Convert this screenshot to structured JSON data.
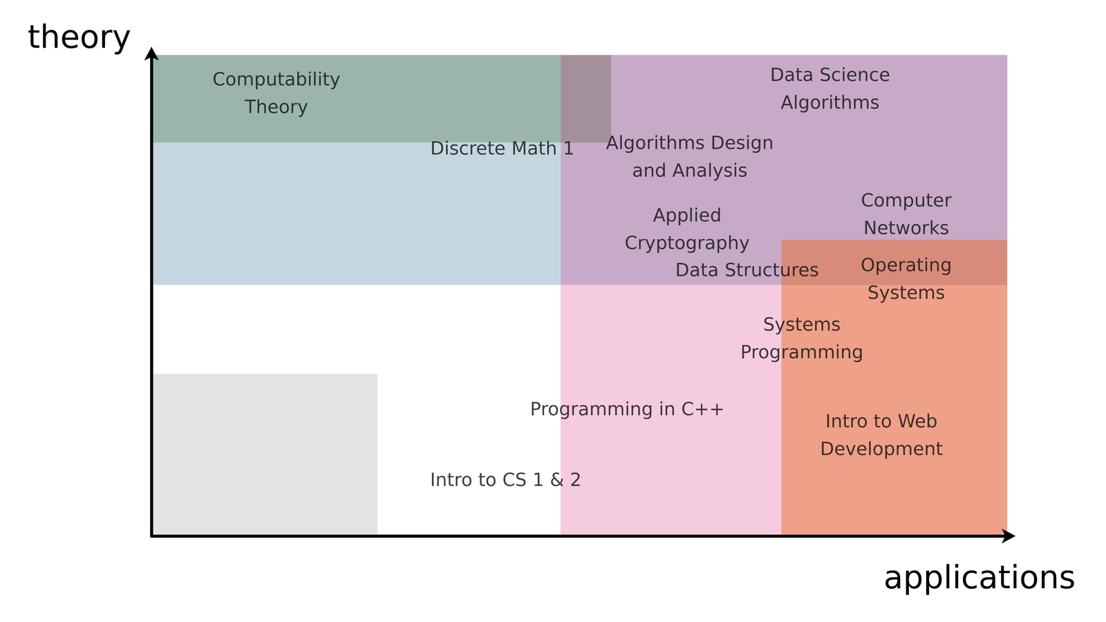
{
  "chart_data": {
    "type": "scatter",
    "x_label": "applications",
    "y_label": "theory",
    "xlim": [
      0,
      100
    ],
    "ylim": [
      0,
      100
    ],
    "tick_labels": false,
    "grid": false,
    "regions": [
      {
        "x": [
          47.8,
          100
        ],
        "y": [
          52.2,
          100
        ],
        "color": "#c6aac8"
      },
      {
        "x": [
          0,
          47.8
        ],
        "y": [
          81.8,
          100
        ],
        "color": "#9bb5aa"
      },
      {
        "x": [
          47.8,
          53.7
        ],
        "y": [
          81.8,
          100
        ],
        "color": "#a3909a"
      },
      {
        "x": [
          0,
          47.8
        ],
        "y": [
          52.2,
          81.8
        ],
        "color": "#c4d7e0"
      },
      {
        "x": [
          73.6,
          100
        ],
        "y": [
          0,
          61.6
        ],
        "color": "#efa088"
      },
      {
        "x": [
          73.6,
          100
        ],
        "y": [
          52.2,
          61.6
        ],
        "color": "#d98b7b"
      },
      {
        "x": [
          47.8,
          73.6
        ],
        "y": [
          0,
          52.2
        ],
        "color": "#f5cbdf"
      },
      {
        "x": [
          0,
          26.4
        ],
        "y": [
          0,
          33.7
        ],
        "color": "#e3e3e3"
      }
    ],
    "points": [
      {
        "label": "Computability\nTheory",
        "x": 14.6,
        "y": 92.1
      },
      {
        "label": "Discrete Math 1",
        "x": 41.0,
        "y": 80.6
      },
      {
        "label": "Data Science\nAlgorithms",
        "x": 79.3,
        "y": 93.0
      },
      {
        "label": "Algorithms Design\nand Analysis",
        "x": 62.9,
        "y": 78.9
      },
      {
        "label": "Applied\nCryptography",
        "x": 62.6,
        "y": 63.8
      },
      {
        "label": "Computer\nNetworks",
        "x": 88.2,
        "y": 66.9
      },
      {
        "label": "Data Structures",
        "x": 69.6,
        "y": 55.3
      },
      {
        "label": "Operating\nSystems",
        "x": 88.2,
        "y": 53.5
      },
      {
        "label": "Systems\nProgramming",
        "x": 76.0,
        "y": 41.1
      },
      {
        "label": "Programming in C++",
        "x": 55.6,
        "y": 26.4
      },
      {
        "label": "Intro to Web\nDevelopment",
        "x": 85.3,
        "y": 21.0
      },
      {
        "label": "Intro to CS 1 & 2",
        "x": 41.4,
        "y": 11.7
      }
    ]
  }
}
